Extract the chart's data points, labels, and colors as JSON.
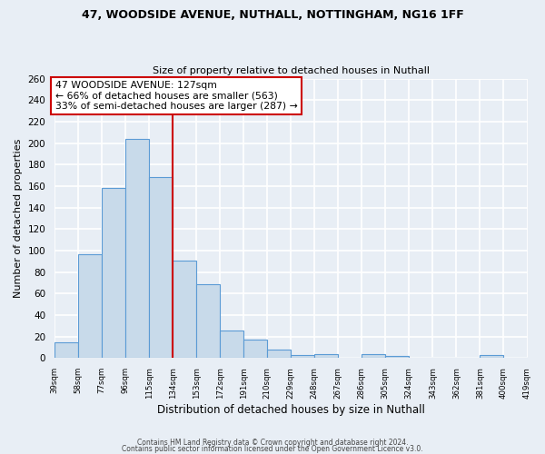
{
  "title": "47, WOODSIDE AVENUE, NUTHALL, NOTTINGHAM, NG16 1FF",
  "subtitle": "Size of property relative to detached houses in Nuthall",
  "xlabel": "Distribution of detached houses by size in Nuthall",
  "ylabel": "Number of detached properties",
  "bin_edges": [
    39,
    58,
    77,
    96,
    115,
    134,
    153,
    172,
    191,
    210,
    229,
    248,
    267,
    286,
    305,
    324,
    343,
    362,
    381,
    400,
    419
  ],
  "bin_labels": [
    "39sqm",
    "58sqm",
    "77sqm",
    "96sqm",
    "115sqm",
    "134sqm",
    "153sqm",
    "172sqm",
    "191sqm",
    "210sqm",
    "229sqm",
    "248sqm",
    "267sqm",
    "286sqm",
    "305sqm",
    "324sqm",
    "343sqm",
    "362sqm",
    "381sqm",
    "400sqm",
    "419sqm"
  ],
  "counts": [
    15,
    97,
    158,
    204,
    168,
    91,
    69,
    26,
    17,
    8,
    3,
    4,
    0,
    4,
    2,
    0,
    0,
    0,
    3,
    0
  ],
  "bar_color": "#c8daea",
  "bar_edge_color": "#5b9bd5",
  "vline_x": 134,
  "vline_color": "#cc0000",
  "ylim": [
    0,
    260
  ],
  "yticks": [
    0,
    20,
    40,
    60,
    80,
    100,
    120,
    140,
    160,
    180,
    200,
    220,
    240,
    260
  ],
  "annotation_title": "47 WOODSIDE AVENUE: 127sqm",
  "annotation_line1": "← 66% of detached houses are smaller (563)",
  "annotation_line2": "33% of semi-detached houses are larger (287) →",
  "annotation_box_color": "#ffffff",
  "annotation_box_edgecolor": "#cc0000",
  "footer1": "Contains HM Land Registry data © Crown copyright and database right 2024.",
  "footer2": "Contains public sector information licensed under the Open Government Licence v3.0.",
  "background_color": "#e8eef5",
  "grid_color": "#ffffff",
  "plot_bg_color": "#e8eef5"
}
